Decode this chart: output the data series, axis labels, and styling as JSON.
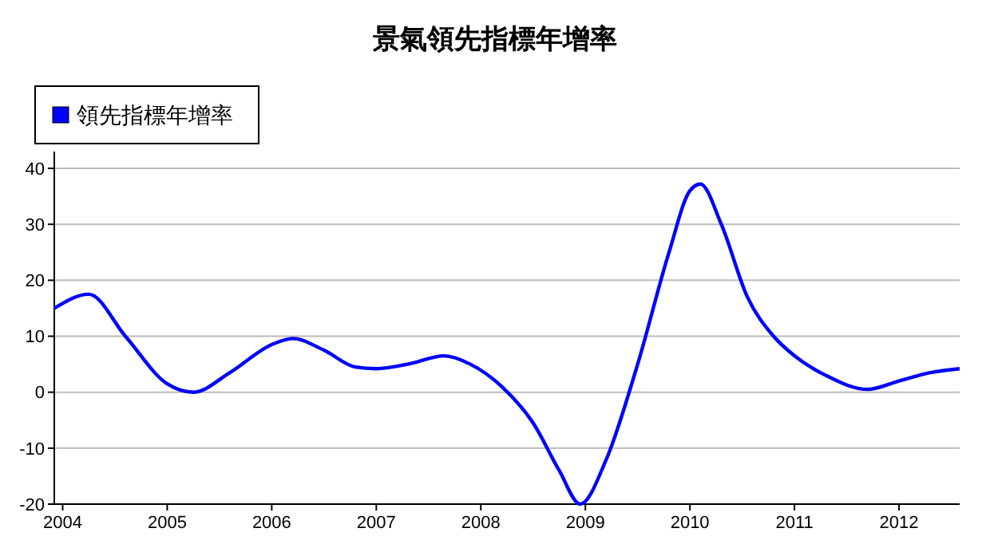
{
  "chart_data": {
    "type": "line",
    "title": "景氣領先指標年增率",
    "legend": "top left",
    "grid": "y",
    "marker": "none",
    "line_style": "solid",
    "x": [
      2003.92,
      2004.25,
      2004.6,
      2005.0,
      2005.25,
      2005.6,
      2006.0,
      2006.2,
      2006.5,
      2006.8,
      2007.0,
      2007.3,
      2007.65,
      2007.9,
      2008.2,
      2008.5,
      2008.75,
      2008.95,
      2009.2,
      2009.5,
      2009.8,
      2010.0,
      2010.1,
      2010.3,
      2010.55,
      2010.8,
      2011.0,
      2011.3,
      2011.7,
      2012.0,
      2012.3,
      2012.58
    ],
    "series": [
      {
        "name": "領先指標年增率",
        "color": "#0000ff",
        "values": [
          15,
          17.5,
          10,
          1.5,
          0,
          3.5,
          8.5,
          9.6,
          7.5,
          4.5,
          4.2,
          5,
          6.5,
          5,
          1,
          -5.5,
          -14,
          -20,
          -12,
          5,
          25,
          36,
          37.2,
          30,
          17,
          10,
          6.5,
          3,
          0.5,
          2,
          3.5,
          4.2
        ]
      }
    ],
    "xlim": [
      2003.92,
      2012.58
    ],
    "xticks": [
      2004,
      2005,
      2006,
      2007,
      2008,
      2009,
      2010,
      2011,
      2012
    ],
    "ylim": [
      -20,
      43
    ],
    "yticks": [
      -20,
      -10,
      0,
      10,
      20,
      30,
      40
    ]
  }
}
